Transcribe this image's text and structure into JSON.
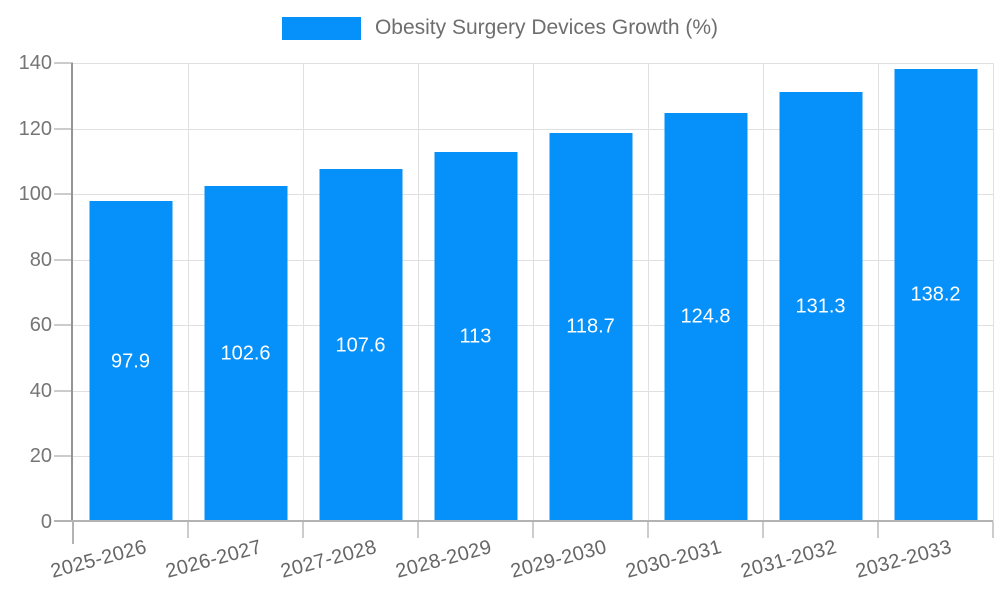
{
  "chart_data": {
    "type": "bar",
    "title": "Obesity Surgery Devices Growth (%)",
    "categories": [
      "2025-2026",
      "2026-2027",
      "2027-2028",
      "2028-2029",
      "2029-2030",
      "2030-2031",
      "2031-2032",
      "2032-2033"
    ],
    "values": [
      97.9,
      102.6,
      107.6,
      113,
      118.7,
      124.8,
      131.3,
      138.2
    ],
    "value_labels": [
      "97.9",
      "102.6",
      "107.6",
      "113",
      "118.7",
      "124.8",
      "131.3",
      "138.2"
    ],
    "xlabel": "",
    "ylabel": "",
    "ylim": [
      0,
      140
    ],
    "yticks": [
      0,
      20,
      40,
      60,
      80,
      100,
      120,
      140
    ],
    "grid": true,
    "legend_position": "top",
    "value_label_position": "center-of-bar",
    "x_label_rotation_deg": -15,
    "colors": {
      "bar": "#0590FA",
      "value_label": "#ffffff",
      "axis_text": "#757575",
      "x_axis_text": "#666666",
      "legend_text": "#6e6e6e",
      "grid_line": "#e0e0e0",
      "tick_mark": "#cccccc",
      "y_axis_line": "#949494",
      "baseline": "#b3b3b3",
      "background": "#ffffff"
    }
  },
  "legend": {
    "label": "Obesity Surgery Devices Growth (%)"
  }
}
